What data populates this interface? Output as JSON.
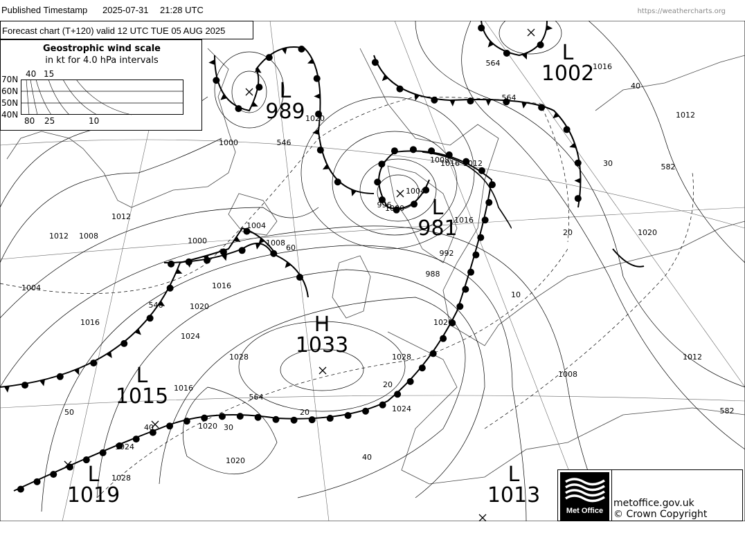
{
  "header": {
    "published_label": "Published Timestamp",
    "date": "2025-07-31",
    "time": "21:28  UTC",
    "url": "https://weathercharts.org"
  },
  "chart_title": "Forecast chart (T+120) valid 12 UTC TUE 05  AUG 2025",
  "wind_scale": {
    "title": "Geostrophic wind scale",
    "subtitle": "in kt for 4.0 hPa intervals",
    "latitudes": [
      "70N",
      "60N",
      "50N",
      "40N"
    ],
    "top_labels": [
      "40",
      "15"
    ],
    "bottom_labels": [
      "80",
      "25",
      "10"
    ]
  },
  "pressure_systems": [
    {
      "type": "L",
      "value": "989"
    },
    {
      "type": "L",
      "value": "1002"
    },
    {
      "type": "L",
      "value": "981"
    },
    {
      "type": "H",
      "value": "1033"
    },
    {
      "type": "L",
      "value": "1015"
    },
    {
      "type": "L",
      "value": "1019"
    },
    {
      "type": "L",
      "value": "1013"
    }
  ],
  "isobar_labels": [
    "1000",
    "1004",
    "1008",
    "1012",
    "1016",
    "1020",
    "1024",
    "1028",
    "1012",
    "1008",
    "1004",
    "1000",
    "1020",
    "1016",
    "1012",
    "1008",
    "1004",
    "1000",
    "996",
    "992",
    "988",
    "1016",
    "1020",
    "1016",
    "1012",
    "1008",
    "1012",
    "1016",
    "1020",
    "1024",
    "1028",
    "1020",
    "1024",
    "1028",
    "1020",
    "1016"
  ],
  "thickness_labels": [
    "546",
    "546",
    "564",
    "564",
    "564",
    "582",
    "582",
    "40",
    "30",
    "20",
    "10",
    "60",
    "50",
    "40",
    "30",
    "20",
    "40",
    "20"
  ],
  "footer": {
    "logo_text": "Met Office",
    "site": "metoffice.gov.uk",
    "copyright": "© Crown Copyright"
  },
  "colors": {
    "lines": "#000000",
    "coast": "#444444",
    "background": "#ffffff",
    "url": "#888888"
  }
}
